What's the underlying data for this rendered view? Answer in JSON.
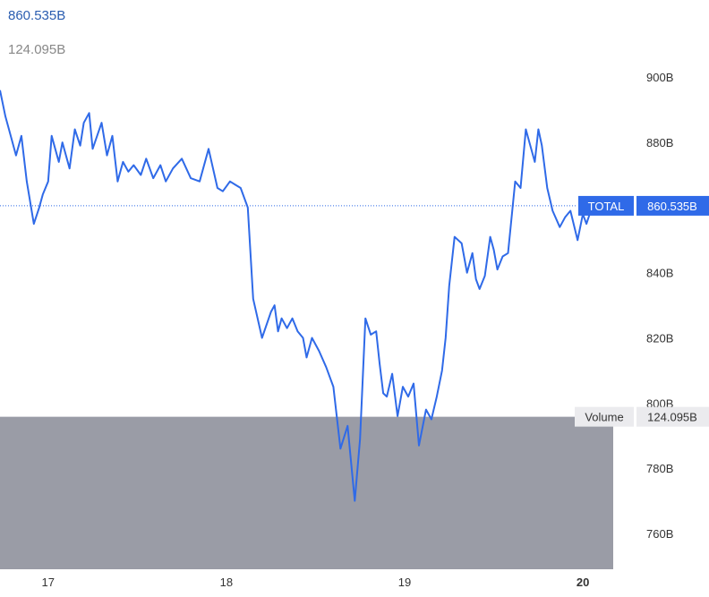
{
  "header": {
    "current_value": "860.535B",
    "volume_value": "124.095B"
  },
  "colors": {
    "line": "#2f6ae8",
    "tag_bg": "#2f6ae8",
    "volume_fill": "#9a9ca6",
    "volume_tag_bg": "#ebebee",
    "background": "#ffffff"
  },
  "chart_data": {
    "type": "line",
    "title": "",
    "xlabel": "",
    "ylabel": "",
    "x_ticks": [
      "17",
      "18",
      "19",
      "20"
    ],
    "x_tick_days": [
      17,
      18,
      19,
      20
    ],
    "x_range": [
      16.73,
      20.17
    ],
    "y_ticks": [
      "900B",
      "880B",
      "860B",
      "840B",
      "820B",
      "800B",
      "780B",
      "760B"
    ],
    "y_tick_values": [
      900,
      880,
      860,
      840,
      820,
      800,
      780,
      760
    ],
    "y_range": [
      754.5,
      910.5
    ],
    "y_unit": "B",
    "series": [
      {
        "x": [
          16.73,
          16.76,
          16.78,
          16.82,
          16.85,
          16.88,
          16.92,
          16.95,
          16.97,
          17.0,
          17.02,
          17.06,
          17.08,
          17.12,
          17.15,
          17.18,
          17.2,
          17.23,
          17.25,
          17.3,
          17.33,
          17.36,
          17.39,
          17.42,
          17.45,
          17.48,
          17.52,
          17.55,
          17.59,
          17.63,
          17.66,
          17.7,
          17.75,
          17.8,
          17.85,
          17.9,
          17.95,
          17.98,
          18.02,
          18.05,
          18.08,
          18.12,
          18.15,
          18.2,
          18.25,
          18.27,
          18.29,
          18.31,
          18.34,
          18.37,
          18.4,
          18.43,
          18.45,
          18.48,
          18.52,
          18.56,
          18.6,
          18.64,
          18.68,
          18.72,
          18.75,
          18.78,
          18.81,
          18.84,
          18.86,
          18.88,
          18.9,
          18.93,
          18.96,
          18.99,
          19.02,
          19.05,
          19.08,
          19.12,
          19.15,
          19.18,
          19.21,
          19.23,
          19.25,
          19.28,
          19.32,
          19.35,
          19.38,
          19.4,
          19.42,
          19.45,
          19.48,
          19.5,
          19.52,
          19.55,
          19.58,
          19.62,
          19.65,
          19.68,
          19.7,
          19.73,
          19.75,
          19.77,
          19.8,
          19.83,
          19.87,
          19.9,
          19.93,
          19.97,
          20.0,
          20.02,
          20.05,
          20.08,
          20.1,
          20.13,
          20.15
        ],
        "y": [
          896,
          888,
          884,
          876,
          882,
          868,
          855,
          860,
          864,
          868,
          882,
          874,
          880,
          872,
          884,
          879,
          886,
          889,
          878,
          886,
          876,
          882,
          868,
          874,
          871,
          873,
          870,
          875,
          869,
          873,
          868,
          872,
          875,
          869,
          868,
          878,
          866,
          865,
          868,
          867,
          866,
          860,
          832,
          820,
          828,
          830,
          822,
          826,
          823,
          826,
          822,
          820,
          814,
          820,
          816,
          811,
          805,
          786,
          793,
          770,
          789,
          826,
          821,
          822,
          812,
          803,
          802,
          809,
          796,
          805,
          802,
          806,
          787,
          798,
          795,
          802,
          810,
          820,
          836,
          851,
          849,
          840,
          846,
          838,
          835,
          839,
          851,
          847,
          841,
          845,
          846,
          868,
          866,
          884,
          880,
          874,
          884,
          879,
          866,
          859,
          854,
          857,
          859,
          850,
          858,
          855,
          860,
          862,
          860,
          861,
          860
        ],
        "line_width": 2
      }
    ],
    "last_value": 860.535,
    "last_value_label": "860.535B",
    "last_value_tag": "TOTAL",
    "volume": {
      "label": "Volume",
      "value_label": "124.095B",
      "top_y": 795.8,
      "x_end": 20.17
    },
    "grid": false,
    "legend": "none"
  }
}
